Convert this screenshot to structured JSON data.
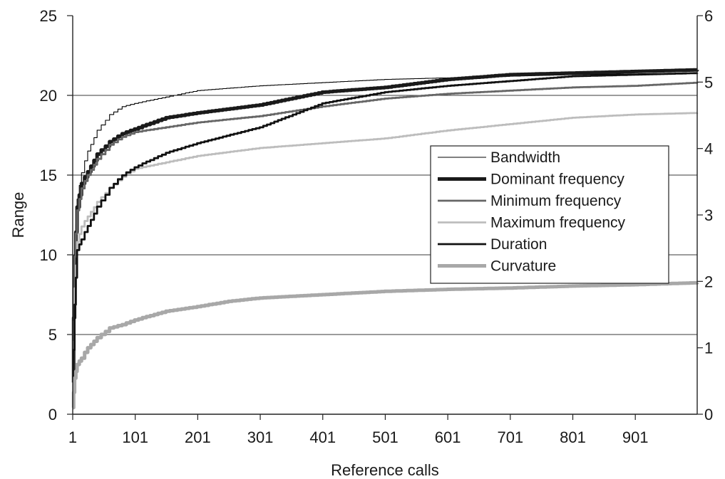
{
  "chart_data": {
    "type": "line",
    "title": "",
    "xlabel": "Reference calls",
    "ylabel": "Range",
    "y2label": "",
    "xlim": [
      1,
      1000
    ],
    "ylim": [
      0,
      25
    ],
    "y2lim": [
      0,
      6
    ],
    "x_ticks": [
      "1",
      "101",
      "201",
      "301",
      "401",
      "501",
      "601",
      "701",
      "801",
      "901"
    ],
    "y_ticks": [
      "0",
      "5",
      "10",
      "15",
      "20",
      "25"
    ],
    "y2_ticks": [
      "0",
      "1",
      "2",
      "3",
      "4",
      "5",
      "6"
    ],
    "grid": "horizontal",
    "legend_position": "right",
    "series": [
      {
        "name": "Bandwidth",
        "color": "#000000",
        "width": "thin",
        "x": [
          1,
          4,
          8,
          15,
          25,
          40,
          60,
          80,
          100,
          150,
          200,
          300,
          400,
          500,
          600,
          700,
          800,
          900,
          1000
        ],
        "y": [
          1.5,
          10.5,
          13.5,
          15.2,
          16.5,
          17.8,
          18.8,
          19.3,
          19.5,
          19.9,
          20.3,
          20.6,
          20.8,
          21.0,
          21.1,
          21.2,
          21.3,
          21.35,
          21.4
        ]
      },
      {
        "name": "Dominant frequency",
        "color": "#1a1a1a",
        "width": "thick",
        "x": [
          1,
          4,
          8,
          15,
          25,
          40,
          60,
          80,
          100,
          150,
          200,
          300,
          400,
          500,
          600,
          700,
          800,
          900,
          1000
        ],
        "y": [
          2,
          10,
          13,
          14.5,
          15.2,
          16.3,
          17.1,
          17.6,
          17.9,
          18.6,
          18.9,
          19.4,
          20.2,
          20.5,
          21.0,
          21.3,
          21.4,
          21.5,
          21.6
        ]
      },
      {
        "name": "Minimum frequency",
        "color": "#666666",
        "width": "medium",
        "x": [
          1,
          4,
          8,
          15,
          25,
          40,
          60,
          80,
          100,
          150,
          200,
          300,
          400,
          500,
          600,
          700,
          800,
          900,
          1000
        ],
        "y": [
          1.5,
          10,
          12.8,
          14.2,
          15.0,
          16.0,
          16.9,
          17.4,
          17.7,
          18.0,
          18.3,
          18.7,
          19.3,
          19.8,
          20.1,
          20.3,
          20.5,
          20.6,
          20.8
        ]
      },
      {
        "name": "Maximum frequency",
        "color": "#bdbdbd",
        "width": "medium",
        "x": [
          1,
          4,
          8,
          15,
          25,
          40,
          60,
          80,
          100,
          150,
          200,
          300,
          400,
          500,
          600,
          700,
          800,
          900,
          1000
        ],
        "y": [
          1,
          8,
          10.8,
          11.8,
          12.4,
          13.3,
          14.2,
          14.9,
          15.4,
          15.8,
          16.2,
          16.7,
          17.0,
          17.3,
          17.8,
          18.2,
          18.6,
          18.8,
          18.9
        ]
      },
      {
        "name": "Duration",
        "color": "#111111",
        "width": "medium",
        "x": [
          1,
          4,
          8,
          15,
          25,
          40,
          60,
          80,
          100,
          150,
          200,
          300,
          400,
          500,
          600,
          700,
          800,
          900,
          1000
        ],
        "y": [
          1,
          7,
          10.3,
          11,
          11.8,
          13,
          14.2,
          15.0,
          15.5,
          16.4,
          17.0,
          18.0,
          19.5,
          20.2,
          20.6,
          20.9,
          21.2,
          21.3,
          21.4
        ]
      },
      {
        "name": "Curvature",
        "color": "#a8a8a8",
        "width": "thick",
        "axis": "right",
        "x": [
          1,
          4,
          8,
          15,
          25,
          40,
          60,
          80,
          100,
          150,
          200,
          250,
          300,
          400,
          500,
          600,
          700,
          800,
          900,
          1000
        ],
        "y": [
          0.1,
          0.55,
          0.75,
          0.85,
          1.0,
          1.15,
          1.3,
          1.35,
          1.42,
          1.55,
          1.62,
          1.7,
          1.75,
          1.8,
          1.85,
          1.88,
          1.9,
          1.93,
          1.95,
          1.98
        ]
      }
    ]
  }
}
